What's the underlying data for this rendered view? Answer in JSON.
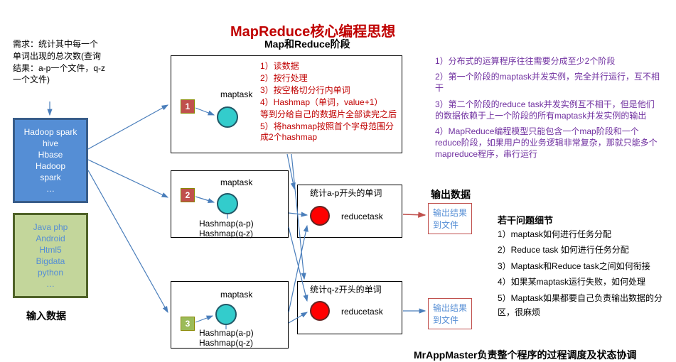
{
  "title": {
    "text": "MapReduce核心编程思想",
    "color": "#c00000",
    "fontsize": 20
  },
  "subtitle": {
    "text": "Map和Reduce阶段",
    "color": "#000",
    "fontsize": 14
  },
  "desc": {
    "text": "需求：统计其中每一个单词出现的总次数(查询结果：a-p一个文件，q-z一个文件)"
  },
  "input": {
    "box1": {
      "lines": [
        "Hadoop spark",
        "hive",
        "Hbase",
        "Hadoop",
        "spark",
        "…"
      ],
      "bg": "#558ed5",
      "border": "#385d8a"
    },
    "box2": {
      "lines": [
        "Java php",
        "Android",
        "Html5",
        "Bigdata",
        "python",
        "…"
      ],
      "bg": "#c3d69b",
      "border": "#4f6228",
      "color": "#558ed5"
    },
    "label": "输入数据"
  },
  "mtask1": {
    "badge": "1",
    "badge_bg": "#c0504d",
    "maptask": "maptask",
    "lines": [
      "1）读数据",
      "2）按行处理",
      "3）按空格切分行内单词",
      "4）Hashmap（单词，value+1）",
      "等到分给自己的数据片全部读完之后",
      "5）将hashmap按照首个字母范围分成2个hashmap"
    ],
    "line_color": "#c00000",
    "circle_fill": "#33cccc",
    "circle_border": "#205867"
  },
  "mtask2": {
    "badge": "2",
    "badge_bg": "#c0504d",
    "maptask": "maptask",
    "h1": "Hashmap(a-p)",
    "h2": "Hashmap(q-z)",
    "circle_fill": "#33cccc",
    "circle_border": "#205867"
  },
  "mtask3": {
    "badge": "3",
    "badge_bg": "#9bbb59",
    "maptask": "maptask",
    "h1": "Hashmap(a-p)",
    "h2": "Hashmap(q-z)",
    "circle_fill": "#33cccc",
    "circle_border": "#205867"
  },
  "rtask1": {
    "title": "统计a-p开头的单词",
    "label": "reducetask",
    "circle_fill": "#ff0000",
    "circle_border": "#632523"
  },
  "rtask2": {
    "title": "统计q-z开头的单词",
    "label": "reducetask",
    "circle_fill": "#ff0000",
    "circle_border": "#632523"
  },
  "output": {
    "title": "输出数据",
    "box1": {
      "l1": "输出结果",
      "l2": "到文件"
    },
    "box2": {
      "l1": "输出结果",
      "l2": "到文件"
    }
  },
  "rightnotes": {
    "color": "#7030a0",
    "items": [
      "1）分布式的运算程序往往需要分成至少2个阶段",
      "2）第一个阶段的maptask并发实例，完全并行运行，互不相干",
      "3）第二个阶段的reduce task并发实例互不相干，但是他们的数据依赖于上一个阶段的所有maptask并发实例的输出",
      "4）MapReduce编程模型只能包含一个map阶段和一个reduce阶段，如果用户的业务逻辑非常复杂，那就只能多个mapreduce程序，串行运行"
    ]
  },
  "details": {
    "title": "若干问题细节",
    "items": [
      "1）maptask如何进行任务分配",
      "2）Reduce task 如何进行任务分配",
      "3）Maptask和Reduce task之间如何衔接",
      "4）如果某maptask运行失败，如何处理",
      "5）Maptask如果都要自己负责输出数据的分区，很麻烦"
    ]
  },
  "footer": {
    "text": "MrAppMaster负责整个程序的过程调度及状态协调"
  },
  "arrow_color": "#4a7ebb",
  "red_arrow": "#c0504d"
}
